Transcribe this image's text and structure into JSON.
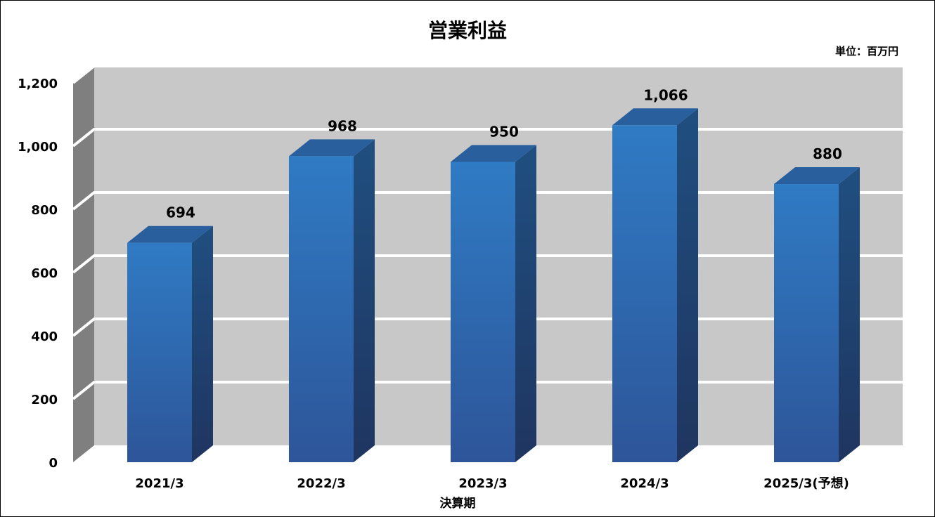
{
  "chart_data": {
    "type": "bar",
    "title": "営業利益",
    "unit_label": "単位：百万円",
    "xlabel": "決算期",
    "ylabel": "",
    "categories": [
      "2021/3",
      "2022/3",
      "2023/3",
      "2024/3",
      "2025/3(予想)"
    ],
    "values": [
      694,
      968,
      950,
      1066,
      880
    ],
    "value_labels": [
      "694",
      "968",
      "950",
      "1,066",
      "880"
    ],
    "ylim": [
      0,
      1200
    ],
    "y_ticks": [
      0,
      200,
      400,
      600,
      800,
      1000,
      1200
    ],
    "y_tick_labels": [
      "0",
      "200",
      "400",
      "600",
      "800",
      "1,000",
      "1,200"
    ],
    "grid": true,
    "legend": "none",
    "style": "3d-column"
  },
  "colors": {
    "bar_front_top": "#2f7bc4",
    "bar_front_bottom": "#2e5599",
    "bar_side": "#1f3f6b",
    "bar_top": "#2a5f9e",
    "back_wall": "#c8c8c8",
    "side_wall": "#7f7f7f",
    "grid": "#ffffff"
  }
}
